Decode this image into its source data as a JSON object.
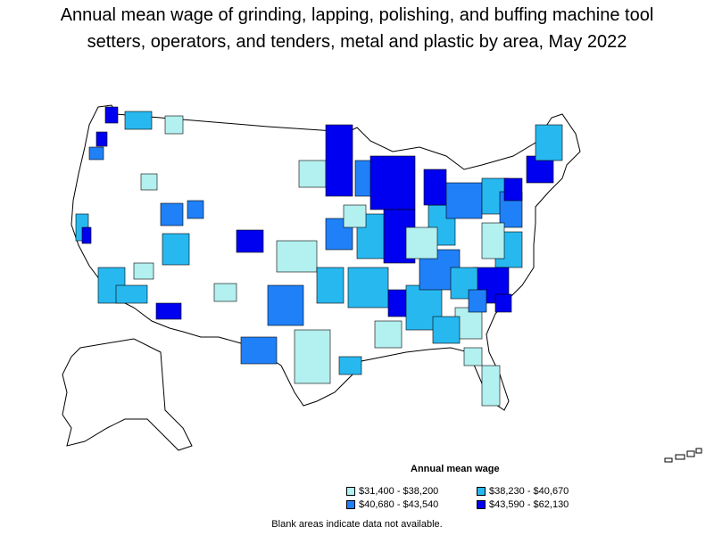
{
  "title_lines": [
    "Annual mean wage of grinding, lapping, polishing, and buffing machine tool",
    "setters, operators, and tenders, metal and plastic by area, May 2022"
  ],
  "legend": {
    "title": "Annual mean wage",
    "items": [
      {
        "label": "$31,400 - $38,200",
        "color": "#b3f0f0"
      },
      {
        "label": "$38,230 - $40,670",
        "color": "#28b8f0"
      },
      {
        "label": "$40,680 - $43,540",
        "color": "#2080f8"
      },
      {
        "label": "$43,590 - $62,130",
        "color": "#0000f0"
      }
    ]
  },
  "note": "Blank areas indicate data not available.",
  "colors": {
    "blank": "#ffffff",
    "border": "#000000"
  }
}
